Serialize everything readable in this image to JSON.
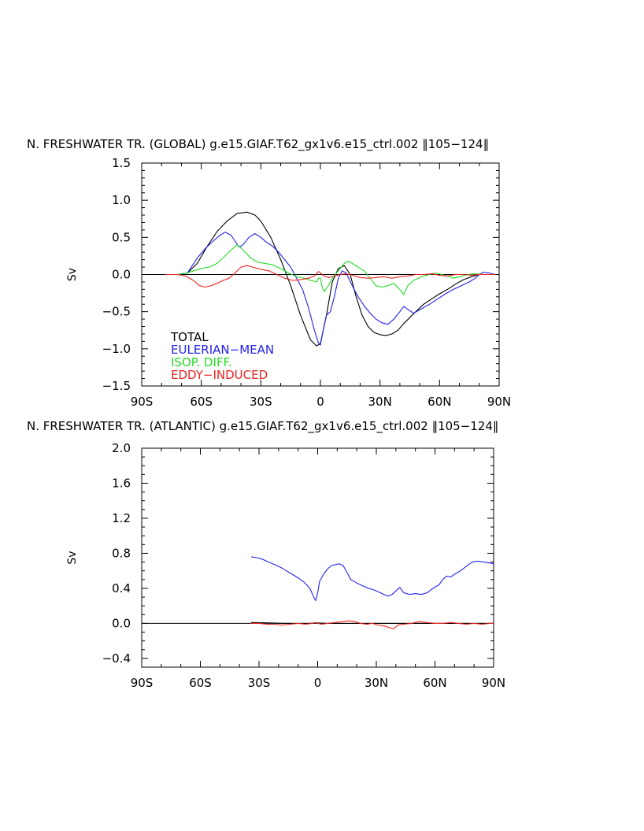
{
  "chart_data": [
    {
      "type": "line",
      "title": "N. FRESHWATER TR. (GLOBAL) g.e15.GIAF.T62_gx1v6.e15_ctrl.002 ‖105−124‖",
      "xlabel": "",
      "ylabel": "Sv",
      "xlim": [
        -90,
        90
      ],
      "ylim": [
        -1.5,
        1.5
      ],
      "xticks": [
        -90,
        -60,
        -30,
        0,
        30,
        60,
        90
      ],
      "xtick_labels": [
        "90S",
        "60S",
        "30S",
        "0",
        "30N",
        "60N",
        "90N"
      ],
      "yticks": [
        -1.5,
        -1.0,
        -0.5,
        0.0,
        0.5,
        1.0,
        1.5
      ],
      "ytick_labels": [
        "−1.5",
        "−1.0",
        "−0.5",
        "0.0",
        "0.5",
        "1.0",
        "1.5"
      ],
      "grid": false,
      "legend_position": "bottom-left",
      "zero_line": true,
      "series": [
        {
          "name": "TOTAL",
          "color": "#000000",
          "x": [
            -78,
            -72,
            -67,
            -62,
            -57,
            -52,
            -47,
            -42,
            -37,
            -33,
            -30,
            -25,
            -20,
            -15,
            -10,
            -5,
            -2,
            0,
            3,
            6,
            9,
            12,
            15,
            18,
            21,
            24,
            27,
            30,
            33,
            36,
            39,
            42,
            45,
            48,
            52,
            56,
            60,
            64,
            68,
            72,
            76,
            80,
            84,
            88
          ],
          "y": [
            0.0,
            0.0,
            0.02,
            0.15,
            0.38,
            0.58,
            0.72,
            0.82,
            0.84,
            0.8,
            0.72,
            0.5,
            0.2,
            -0.15,
            -0.55,
            -0.88,
            -0.96,
            -0.93,
            -0.55,
            -0.1,
            0.08,
            0.12,
            0.0,
            -0.3,
            -0.55,
            -0.7,
            -0.78,
            -0.81,
            -0.82,
            -0.8,
            -0.75,
            -0.66,
            -0.58,
            -0.5,
            -0.4,
            -0.33,
            -0.26,
            -0.2,
            -0.13,
            -0.07,
            -0.03,
            0.0,
            0.0,
            0.0
          ]
        },
        {
          "name": "EULERIAN−MEAN",
          "color": "#2222ee",
          "x": [
            -78,
            -72,
            -67,
            -62,
            -58,
            -54,
            -51,
            -48,
            -45,
            -43,
            -41,
            -39,
            -36,
            -33,
            -30,
            -27,
            -24,
            -21,
            -18,
            -15,
            -12,
            -9,
            -6,
            -3,
            -1,
            0,
            1,
            3,
            5,
            7,
            9,
            11,
            13,
            16,
            19,
            22,
            25,
            28,
            31,
            34,
            37,
            40,
            42,
            44,
            47,
            51,
            55,
            59,
            63,
            67,
            71,
            75,
            78,
            80,
            82,
            85,
            88
          ],
          "y": [
            0.0,
            0.0,
            0.02,
            0.22,
            0.35,
            0.45,
            0.52,
            0.57,
            0.53,
            0.45,
            0.37,
            0.4,
            0.5,
            0.55,
            0.5,
            0.43,
            0.38,
            0.3,
            0.2,
            0.1,
            -0.05,
            -0.2,
            -0.45,
            -0.75,
            -0.92,
            -0.95,
            -0.8,
            -0.55,
            -0.5,
            -0.3,
            -0.05,
            0.05,
            0.02,
            -0.15,
            -0.3,
            -0.42,
            -0.52,
            -0.6,
            -0.65,
            -0.67,
            -0.6,
            -0.5,
            -0.43,
            -0.47,
            -0.52,
            -0.46,
            -0.4,
            -0.33,
            -0.26,
            -0.2,
            -0.15,
            -0.1,
            -0.05,
            0.0,
            0.03,
            0.02,
            0.0
          ]
        },
        {
          "name": "ISOP. DIFF.",
          "color": "#22dd22",
          "x": [
            -78,
            -72,
            -67,
            -64,
            -60,
            -56,
            -52,
            -48,
            -45,
            -42,
            -40,
            -38,
            -35,
            -32,
            -28,
            -24,
            -20,
            -16,
            -12,
            -8,
            -5,
            -2,
            -1,
            0,
            1,
            2,
            4,
            6,
            9,
            12,
            14,
            16,
            19,
            22,
            25,
            28,
            31,
            34,
            37,
            40,
            42,
            44,
            47,
            51,
            55,
            58,
            61,
            64,
            67,
            70,
            74,
            78,
            82,
            86,
            88
          ],
          "y": [
            0.0,
            0.0,
            0.02,
            0.05,
            0.08,
            0.1,
            0.15,
            0.25,
            0.33,
            0.4,
            0.36,
            0.3,
            0.22,
            0.17,
            0.15,
            0.13,
            0.08,
            0.02,
            -0.03,
            -0.05,
            -0.08,
            -0.1,
            -0.05,
            -0.05,
            -0.18,
            -0.23,
            -0.15,
            -0.05,
            0.05,
            0.15,
            0.18,
            0.15,
            0.1,
            0.05,
            -0.05,
            -0.15,
            -0.17,
            -0.15,
            -0.12,
            -0.2,
            -0.27,
            -0.15,
            -0.08,
            -0.03,
            0.0,
            0.02,
            0.0,
            -0.02,
            -0.05,
            -0.03,
            0.0,
            0.01,
            0.0,
            0.0,
            0.0
          ]
        },
        {
          "name": "EDDY−INDUCED",
          "color": "#ee2222",
          "x": [
            -78,
            -72,
            -68,
            -64,
            -61,
            -58,
            -55,
            -52,
            -49,
            -46,
            -43,
            -40,
            -37,
            -34,
            -30,
            -26,
            -22,
            -18,
            -14,
            -10,
            -6,
            -3,
            -1,
            0,
            2,
            4,
            7,
            10,
            13,
            16,
            20,
            24,
            28,
            32,
            36,
            40,
            44,
            48,
            52,
            56,
            60,
            64,
            68,
            72,
            76,
            80,
            84,
            88
          ],
          "y": [
            0.0,
            0.0,
            -0.02,
            -0.08,
            -0.15,
            -0.17,
            -0.15,
            -0.12,
            -0.08,
            -0.05,
            0.02,
            0.1,
            0.12,
            0.1,
            0.07,
            0.05,
            0.0,
            -0.05,
            -0.08,
            -0.07,
            -0.05,
            -0.02,
            0.04,
            0.02,
            -0.02,
            -0.04,
            -0.02,
            0.0,
            0.01,
            -0.01,
            -0.04,
            -0.05,
            -0.04,
            -0.03,
            -0.05,
            -0.03,
            -0.02,
            0.0,
            0.0,
            0.01,
            -0.01,
            -0.02,
            0.0,
            0.0,
            -0.01,
            0.0,
            0.0,
            0.0
          ]
        }
      ]
    },
    {
      "type": "line",
      "title": "N. FRESHWATER TR. (ATLANTIC) g.e15.GIAF.T62_gx1v6.e15_ctrl.002 ‖105−124‖",
      "xlabel": "",
      "ylabel": "Sv",
      "xlim": [
        -90,
        90
      ],
      "ylim": [
        -0.5,
        2.0
      ],
      "xticks": [
        -90,
        -60,
        -30,
        0,
        30,
        60,
        90
      ],
      "xtick_labels": [
        "90S",
        "60S",
        "30S",
        "0",
        "30N",
        "60N",
        "90N"
      ],
      "yticks": [
        -0.4,
        0.0,
        0.4,
        0.8,
        1.2,
        1.6,
        2.0
      ],
      "ytick_labels": [
        "−0.4",
        "0.0",
        "0.4",
        "0.8",
        "1.2",
        "1.6",
        "2.0"
      ],
      "grid": false,
      "zero_line": true,
      "series": [
        {
          "color": "#2222ee",
          "x": [
            -34,
            -31,
            -28,
            -25,
            -22,
            -19,
            -16,
            -13,
            -10,
            -7,
            -4,
            -2,
            -1,
            0,
            1,
            3,
            5,
            7,
            9,
            11,
            13,
            15,
            17,
            20,
            23,
            26,
            29,
            32,
            34,
            36,
            38,
            40,
            42,
            44,
            47,
            50,
            53,
            56,
            59,
            62,
            64,
            66,
            68,
            70,
            73,
            76,
            79,
            82,
            85,
            88,
            90
          ],
          "y": [
            0.76,
            0.75,
            0.73,
            0.7,
            0.67,
            0.64,
            0.6,
            0.56,
            0.52,
            0.47,
            0.4,
            0.3,
            0.26,
            0.35,
            0.48,
            0.56,
            0.62,
            0.66,
            0.67,
            0.68,
            0.66,
            0.58,
            0.5,
            0.46,
            0.43,
            0.4,
            0.38,
            0.35,
            0.33,
            0.31,
            0.33,
            0.37,
            0.41,
            0.35,
            0.33,
            0.34,
            0.33,
            0.35,
            0.4,
            0.44,
            0.5,
            0.54,
            0.53,
            0.56,
            0.6,
            0.65,
            0.7,
            0.71,
            0.7,
            0.69,
            0.68
          ]
        },
        {
          "color": "#000000",
          "x": [
            -34,
            -25,
            -15,
            -5,
            0,
            5,
            15,
            25,
            35,
            45,
            55,
            65,
            75,
            85,
            90
          ],
          "y": [
            0.01,
            0.005,
            0.0,
            0.0,
            0.005,
            0.0,
            0.0,
            0.0,
            0.0,
            0.0,
            0.0,
            0.0,
            0.0,
            0.0,
            0.0
          ]
        },
        {
          "color": "#ee2222",
          "x": [
            -34,
            -30,
            -26,
            -22,
            -18,
            -14,
            -10,
            -6,
            -3,
            -1,
            0,
            2,
            5,
            9,
            13,
            16,
            19,
            22,
            25,
            28,
            31,
            34,
            37,
            39,
            41,
            44,
            48,
            52,
            56,
            60,
            64,
            68,
            72,
            76,
            80,
            84,
            88,
            90
          ],
          "y": [
            0.0,
            0.0,
            -0.01,
            -0.01,
            -0.02,
            -0.01,
            0.0,
            -0.01,
            0.0,
            0.01,
            0.0,
            -0.01,
            0.0,
            0.01,
            0.02,
            0.03,
            0.02,
            0.0,
            -0.01,
            0.0,
            -0.02,
            -0.03,
            -0.05,
            -0.06,
            -0.02,
            -0.01,
            0.0,
            0.02,
            0.01,
            0.0,
            0.0,
            0.01,
            0.0,
            -0.01,
            0.0,
            -0.01,
            0.0,
            0.0
          ]
        }
      ]
    }
  ]
}
